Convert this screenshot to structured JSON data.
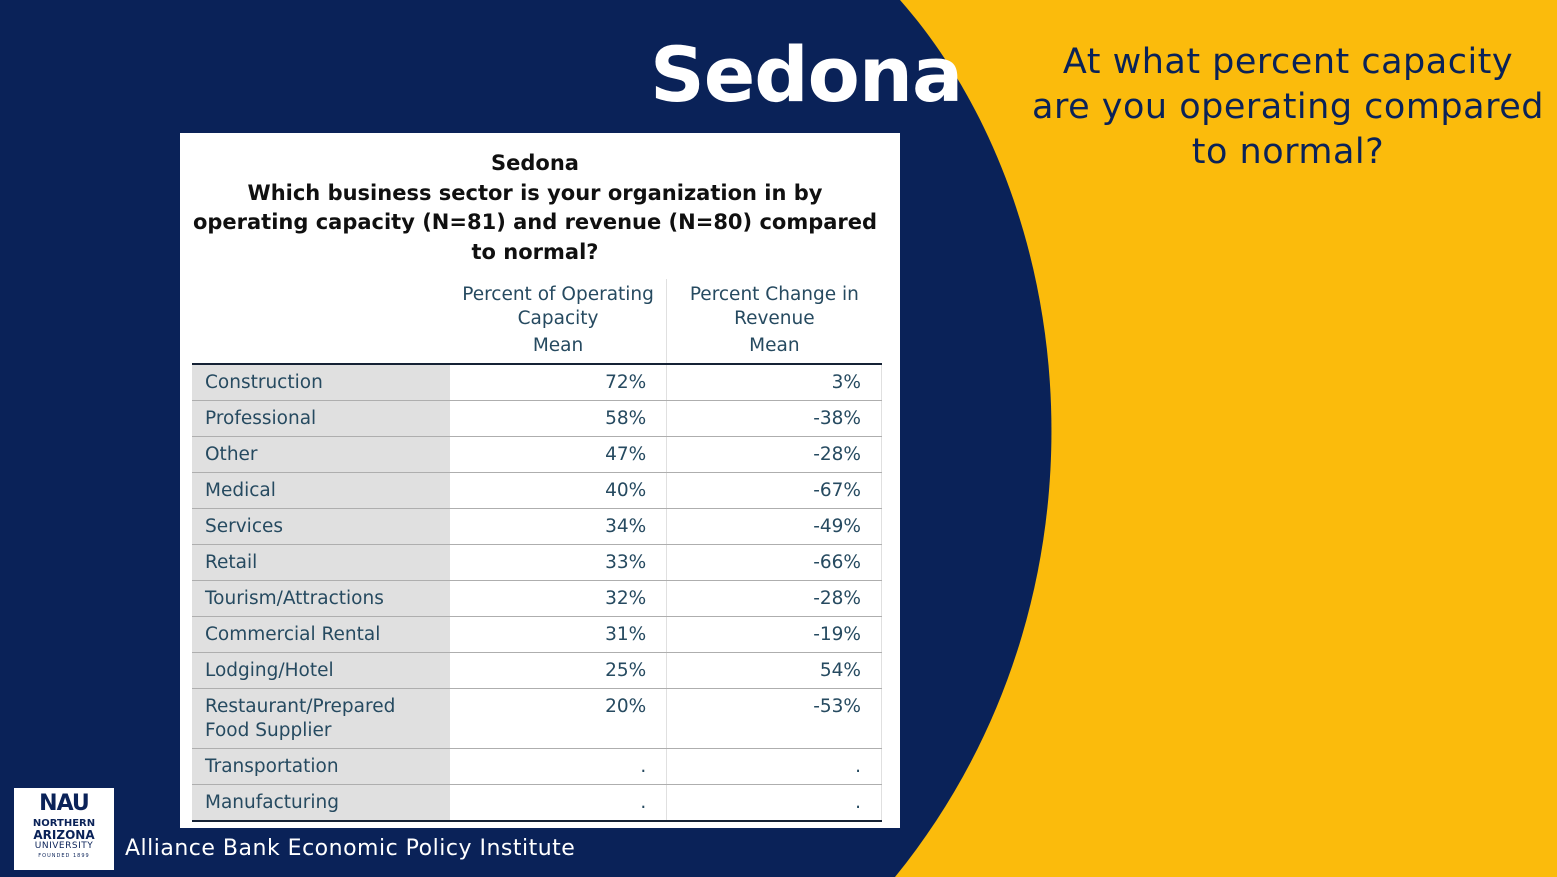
{
  "slide": {
    "title": "Sedona",
    "question": "At what percent capacity are you operating compared to normal?",
    "footer": "Alliance Bank Economic Policy Institute",
    "colors": {
      "navy": "#0a2258",
      "gold": "#fbbb0c",
      "table_text": "#264a60",
      "label_bg": "#e0e0e0"
    }
  },
  "logo": {
    "mark": "NAU",
    "line1": "NORTHERN",
    "line2": "ARIZONA",
    "line3": "UNIVERSITY",
    "line4": "FOUNDED 1899"
  },
  "table": {
    "title_line1": "Sedona",
    "title_line2": "Which business sector is your organization in by",
    "title_line3": "operating capacity (N=81) and revenue (N=80) compared",
    "title_line4": "to normal?",
    "col1_header_a": "Percent of Operating",
    "col1_header_b": "Capacity",
    "col1_stat": "Mean",
    "col2_header_a": "Percent Change in",
    "col2_header_b": "Revenue",
    "col2_stat": "Mean",
    "rows": [
      {
        "sector": "Construction",
        "capacity": "72%",
        "revenue": "3%"
      },
      {
        "sector": "Professional",
        "capacity": "58%",
        "revenue": "-38%"
      },
      {
        "sector": "Other",
        "capacity": "47%",
        "revenue": "-28%"
      },
      {
        "sector": "Medical",
        "capacity": "40%",
        "revenue": "-67%"
      },
      {
        "sector": "Services",
        "capacity": "34%",
        "revenue": "-49%"
      },
      {
        "sector": "Retail",
        "capacity": "33%",
        "revenue": "-66%"
      },
      {
        "sector": "Tourism/Attractions",
        "capacity": "32%",
        "revenue": "-28%"
      },
      {
        "sector": "Commercial Rental",
        "capacity": "31%",
        "revenue": "-19%"
      },
      {
        "sector": "Lodging/Hotel",
        "capacity": "25%",
        "revenue": "54%"
      },
      {
        "sector": "Restaurant/Prepared",
        "sector_line2": "Food Supplier",
        "capacity": "20%",
        "revenue": "-53%"
      },
      {
        "sector": "Transportation",
        "capacity": ".",
        "revenue": "."
      },
      {
        "sector": "Manufacturing",
        "capacity": ".",
        "revenue": "."
      }
    ]
  }
}
